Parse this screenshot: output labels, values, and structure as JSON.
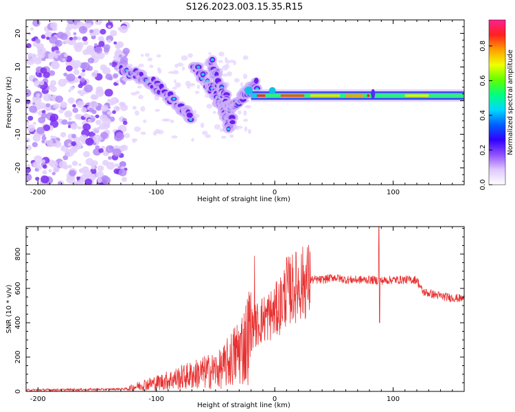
{
  "title": "S126.2023.003.15.35.R15",
  "chart_data": [
    {
      "type": "heatmap",
      "xlabel": "Height of straight line (km)",
      "ylabel": "Frequency (Hz)",
      "xlim": [
        -210,
        160
      ],
      "ylim": [
        -25,
        24
      ],
      "xticks": [
        -200,
        -100,
        0,
        100
      ],
      "yticks": [
        -20,
        -10,
        0,
        10,
        20
      ],
      "colorbar": {
        "label": "Normalized spectral amplitude",
        "range": [
          0,
          0.95
        ],
        "ticks": [
          "0.0",
          "0.2",
          "0.4",
          "0.6",
          "0.8"
        ],
        "colors": [
          "#ffffff",
          "#e0c8ff",
          "#9050ff",
          "#3000ff",
          "#0060ff",
          "#00d8ff",
          "#00ff80",
          "#60ff00",
          "#f0ff00",
          "#ffa000",
          "#ff2020",
          "#ff2090"
        ]
      },
      "features": {
        "noise_region_x": [
          -210,
          -125
        ],
        "carrier_frequency_hz": 1.5,
        "carrier_start_km": -20,
        "descending_tracks": [
          {
            "x": [
              -130,
              -110,
              -95,
              -80,
              -70
            ],
            "y": [
              9,
              7,
              3,
              -2,
              -5
            ]
          },
          {
            "x": [
              -68,
              -58,
              -50,
              -43,
              -38
            ],
            "y": [
              11,
              6,
              2,
              -3,
              -8
            ]
          },
          {
            "x": [
              -55,
              -47,
              -40,
              -36
            ],
            "y": [
              12,
              5,
              0,
              -6
            ]
          },
          {
            "x": [
              -38,
              -30,
              -22,
              -15
            ],
            "y": [
              -2,
              0,
              3,
              5
            ]
          }
        ]
      }
    },
    {
      "type": "line",
      "xlabel": "Height of straight line (km)",
      "ylabel": "SNR (10 * v/v)",
      "xlim": [
        -210,
        160
      ],
      "ylim": [
        0,
        960
      ],
      "xticks": [
        -200,
        -100,
        0,
        100
      ],
      "yticks": [
        0,
        200,
        400,
        600,
        800
      ],
      "color": "#e83030",
      "envelope": {
        "x": [
          -210,
          -140,
          -125,
          -110,
          -100,
          -80,
          -60,
          -45,
          -35,
          -25,
          -20,
          -10,
          0,
          5,
          10,
          20,
          30,
          40,
          50,
          60,
          70,
          80,
          90,
          100,
          110,
          120,
          125,
          140,
          150,
          160
        ],
        "y": [
          8,
          12,
          15,
          40,
          50,
          80,
          110,
          130,
          200,
          280,
          360,
          420,
          460,
          510,
          580,
          620,
          650,
          650,
          665,
          650,
          650,
          650,
          645,
          650,
          650,
          650,
          580,
          555,
          545,
          540
        ]
      },
      "spikes": [
        {
          "x": -17,
          "y": 790
        },
        {
          "x": 10,
          "y": 780
        },
        {
          "x": 88,
          "y": 960
        },
        {
          "x": 88.5,
          "y": 400
        }
      ]
    }
  ]
}
